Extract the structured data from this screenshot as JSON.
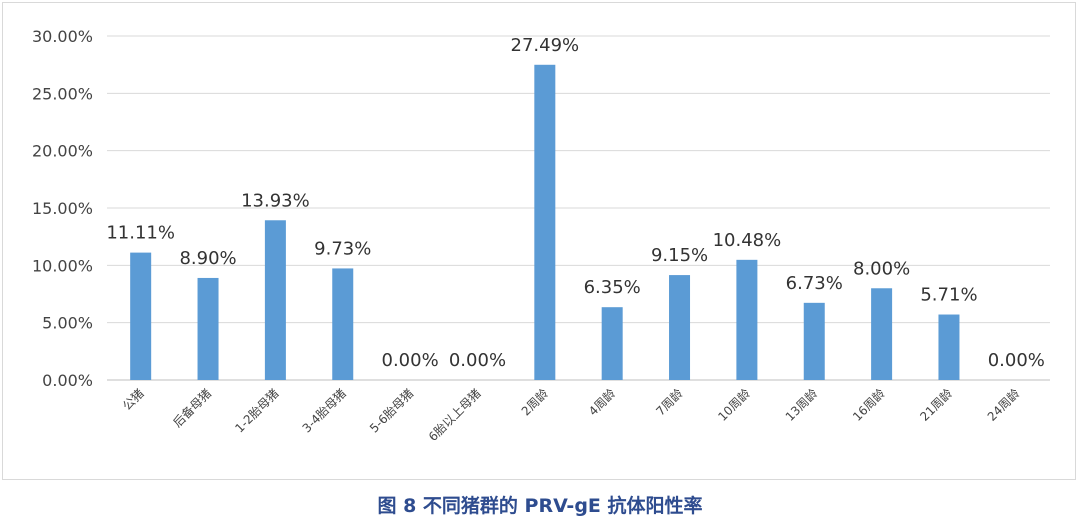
{
  "chart_data": {
    "type": "bar",
    "categories": [
      "公猪",
      "后备母猪",
      "1-2胎母猪",
      "3-4胎母猪",
      "5-6胎母猪",
      "6胎以上母猪",
      "2周龄",
      "4周龄",
      "7周龄",
      "10周龄",
      "13周龄",
      "16周龄",
      "21周龄",
      "24周龄"
    ],
    "values": [
      11.11,
      8.9,
      13.93,
      9.73,
      0.0,
      0.0,
      27.49,
      6.35,
      9.15,
      10.48,
      6.73,
      8.0,
      5.71,
      0.0
    ],
    "data_labels": [
      "11.11%",
      "8.90%",
      "13.93%",
      "9.73%",
      "0.00%",
      "0.00%",
      "27.49%",
      "6.35%",
      "9.15%",
      "10.48%",
      "6.73%",
      "8.00%",
      "5.71%",
      "0.00%"
    ],
    "yticks": [
      "0.00%",
      "5.00%",
      "10.00%",
      "15.00%",
      "20.00%",
      "25.00%",
      "30.00%"
    ],
    "ylim": [
      0,
      30
    ],
    "grid": true,
    "bar_color": "#5b9bd5",
    "title": "",
    "xlabel": "",
    "ylabel": ""
  },
  "caption": "图 8  不同猪群的 PRV-gE 抗体阳性率"
}
